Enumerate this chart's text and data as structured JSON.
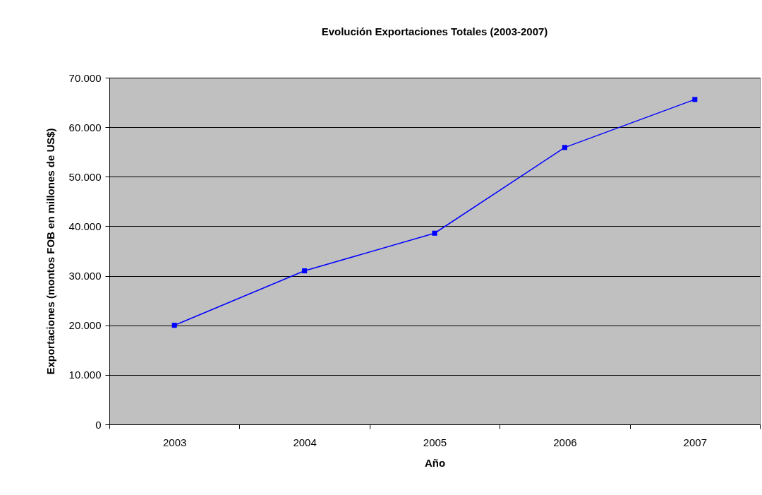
{
  "chart_data": {
    "type": "line",
    "title": "Evolución Exportaciones Totales (2003-2007)",
    "xlabel": "Año",
    "ylabel": "Exportaciones (montos FOB en millones de US$)",
    "categories": [
      "2003",
      "2004",
      "2005",
      "2006",
      "2007"
    ],
    "series": [
      {
        "color": "#0000ff",
        "values": [
          20000,
          31000,
          38600,
          55900,
          65600
        ]
      }
    ],
    "ylim": [
      0,
      70000
    ],
    "yticks": [
      {
        "value": 0,
        "label": "0"
      },
      {
        "value": 10000,
        "label": "10.000"
      },
      {
        "value": 20000,
        "label": "20.000"
      },
      {
        "value": 30000,
        "label": "30.000"
      },
      {
        "value": 40000,
        "label": "40.000"
      },
      {
        "value": 50000,
        "label": "50.000"
      },
      {
        "value": 60000,
        "label": "60.000"
      },
      {
        "value": 70000,
        "label": "70.000"
      }
    ],
    "grid": "y",
    "marker": "square",
    "line_style": "solid"
  }
}
